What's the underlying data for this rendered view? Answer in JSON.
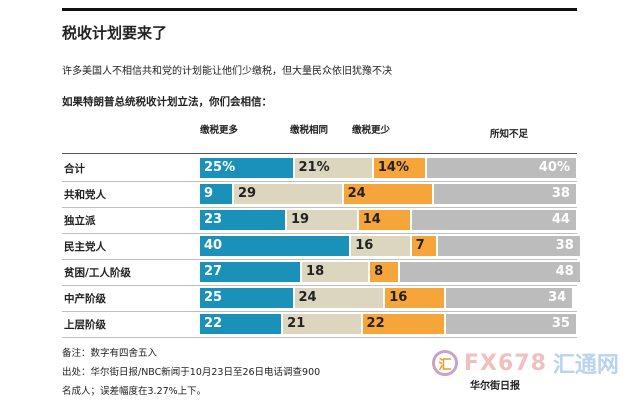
{
  "title": "税收计划要来了",
  "subtitle": "许多美国人不相信共和党的计划能让他们少缴税，但大量民众依旧犹豫不决",
  "question": "如果特朗普总统税收计划立法，你们会相信：",
  "chart_data": {
    "type": "bar",
    "stacked": true,
    "orientation": "horizontal",
    "categories": [
      "合计",
      "共和党人",
      "独立派",
      "民主党人",
      "贫困/工人阶级",
      "中产阶级",
      "上层阶级"
    ],
    "series": [
      {
        "name": "缴税更多",
        "values": [
          25,
          9,
          23,
          40,
          27,
          25,
          22
        ],
        "color": "#1a91b8"
      },
      {
        "name": "缴税相同",
        "values": [
          21,
          29,
          19,
          16,
          18,
          24,
          21
        ],
        "color": "#dcd6bf"
      },
      {
        "name": "缴税更少",
        "values": [
          14,
          24,
          14,
          7,
          8,
          16,
          22
        ],
        "color": "#f6a53b"
      },
      {
        "name": "所知不足",
        "values": [
          40,
          38,
          44,
          38,
          48,
          34,
          35
        ],
        "color": "#bcbcbc"
      }
    ],
    "value_labels": {
      "first_row": [
        "25%",
        "21%",
        "14%",
        "40%"
      ]
    },
    "xlim": [
      0,
      100
    ]
  },
  "notes": {
    "rounding": "备注：数字有四舍五入",
    "source": "出处：华尔街日报/NBC新闻于10月23日至26日电话调查900",
    "margin": "名成人；误差幅度在3.27%上下。",
    "logo": "华尔街日报"
  },
  "watermark": {
    "circle": "汇",
    "brand": "FX678",
    "brand_cn": "汇通网"
  }
}
